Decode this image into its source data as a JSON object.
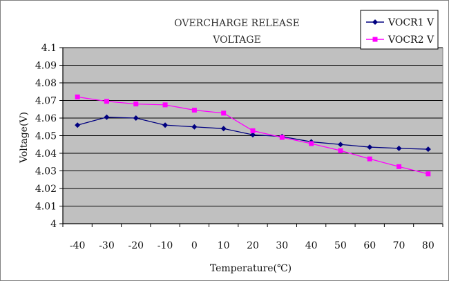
{
  "chart_data": {
    "type": "line",
    "title": [
      "OVERCHARGE RELEASE",
      "VOLTAGE"
    ],
    "xlabel": "Temperature(℃)",
    "ylabel": "Voltage(V)",
    "categories": [
      "-40",
      "-30",
      "-20",
      "-10",
      "0",
      "10",
      "20",
      "30",
      "40",
      "50",
      "60",
      "70",
      "80"
    ],
    "ylim": [
      4.0,
      4.1
    ],
    "yticks": [
      "4",
      "4.01",
      "4.02",
      "4.03",
      "4.04",
      "4.05",
      "4.06",
      "4.07",
      "4.08",
      "4.09",
      "4.1"
    ],
    "grid": true,
    "legend_position": "top-right",
    "series": [
      {
        "name": "VOCR1 V",
        "marker": "diamond",
        "color": "#000080",
        "values": [
          4.056,
          4.0605,
          4.06,
          4.056,
          4.055,
          4.054,
          4.0505,
          4.0495,
          4.0465,
          4.045,
          4.0435,
          4.0428,
          4.0423
        ]
      },
      {
        "name": "VOCR2 V",
        "marker": "square",
        "color": "#ff00ff",
        "values": [
          4.072,
          4.0695,
          4.068,
          4.0675,
          4.0645,
          4.0628,
          4.0528,
          4.049,
          4.0455,
          4.0415,
          4.0368,
          4.0324,
          4.0283
        ]
      }
    ]
  },
  "colors": {
    "plot_background": "#c0c0c0",
    "gridline": "#000000"
  }
}
